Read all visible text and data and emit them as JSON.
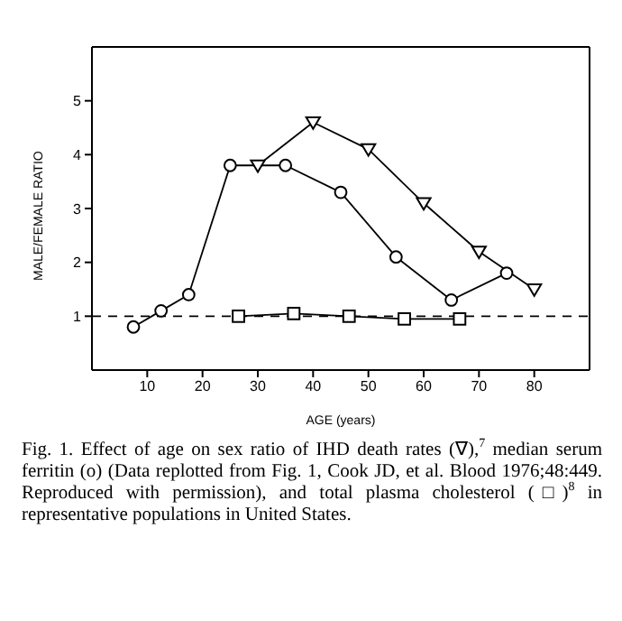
{
  "chart_data": {
    "type": "line",
    "xlabel": "AGE (years)",
    "ylabel": "MALE/FEMALE RATIO",
    "xlim": [
      0,
      90
    ],
    "xticks": [
      10,
      20,
      30,
      40,
      50,
      60,
      70,
      80
    ],
    "ylim": [
      0,
      6
    ],
    "yticks": [
      1,
      2,
      3,
      4,
      5
    ],
    "line_style": "solid",
    "series": [
      {
        "color": "#000000",
        "marker": "triangle",
        "x": [
          30,
          40,
          50,
          60,
          70,
          80
        ],
        "values": [
          3.8,
          4.6,
          4.1,
          3.1,
          2.2,
          1.5
        ]
      },
      {
        "color": "#000000",
        "marker": "circle",
        "x": [
          7.5,
          12.5,
          17.5,
          25,
          35,
          45,
          55,
          65,
          75
        ],
        "values": [
          0.8,
          1.1,
          1.4,
          3.8,
          3.8,
          3.3,
          2.1,
          1.3,
          1.8
        ]
      },
      {
        "color": "#000000",
        "marker": "square",
        "x": [
          26.5,
          36.5,
          46.5,
          56.5,
          66.5
        ],
        "values": [
          1.0,
          1.05,
          1.0,
          0.95,
          0.95
        ]
      }
    ],
    "ref_lines": [
      {
        "axis": "y",
        "value": 1,
        "color": "#000000",
        "line_style": "dashed"
      }
    ],
    "annotations": [
      "Fig. 1. Effect of age on sex ratio of IHD death rates (∇),$^{7}$ median serum ferritin (o) (Data replotted from Fig. 1, Cook JD, et al. Blood 1976;48:449. Reproduced with permission), and total plasma cholesterol (□)$^{8}$ in representative populations in United States."
    ]
  }
}
